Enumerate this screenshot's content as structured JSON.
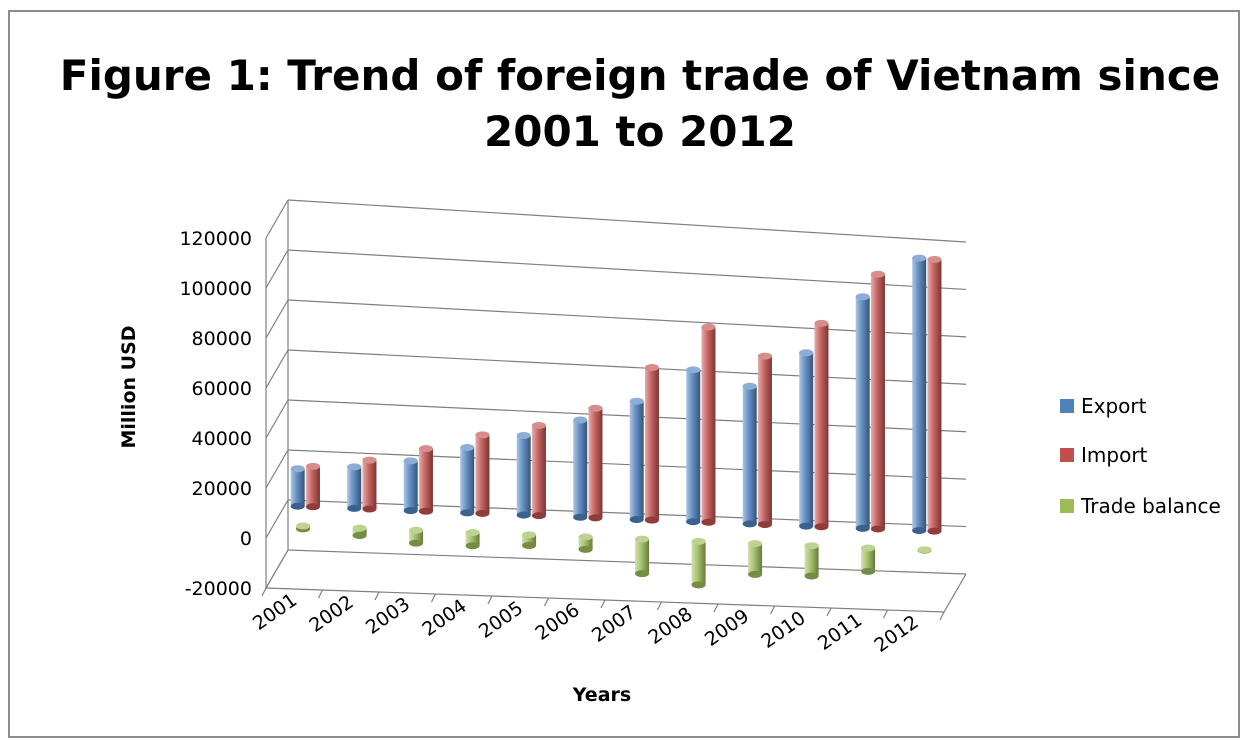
{
  "chart_data": {
    "type": "bar",
    "title_lines": [
      "Figure 1: Trend of foreign trade of Vietnam since",
      "2001 to 2012"
    ],
    "title": "Figure 1: Trend of foreign trade of Vietnam since 2001 to 2012",
    "xlabel": "Years",
    "ylabel": "Million USD",
    "ylim": [
      -20000,
      120000
    ],
    "yticks": [
      120000,
      100000,
      80000,
      60000,
      40000,
      20000,
      0,
      -20000
    ],
    "ytick_labels": [
      "120000",
      "100000",
      "80000",
      "60000",
      "40000",
      "20000",
      "0",
      "-20000"
    ],
    "categories": [
      "2001",
      "2002",
      "2003",
      "2004",
      "2005",
      "2006",
      "2007",
      "2008",
      "2009",
      "2010",
      "2011",
      "2012"
    ],
    "series": [
      {
        "name": "Export",
        "color": "#4f81bd",
        "values": [
          15000,
          16700,
          20100,
          26500,
          32400,
          39800,
          48600,
          62700,
          57100,
          72200,
          96900,
          114500
        ]
      },
      {
        "name": "Import",
        "color": "#c0504d",
        "values": [
          16200,
          19700,
          25300,
          31900,
          36800,
          44900,
          62800,
          80700,
          69900,
          84800,
          106700,
          114300
        ]
      },
      {
        "name": "Trade balance",
        "color": "#9bbb59",
        "values": [
          -1200,
          -3000,
          -5200,
          -5400,
          -4400,
          -5100,
          -14200,
          -18000,
          -12800,
          -12600,
          -9800,
          200
        ]
      }
    ],
    "grid": true,
    "legend_position": "right",
    "style": "3d clustered column"
  }
}
